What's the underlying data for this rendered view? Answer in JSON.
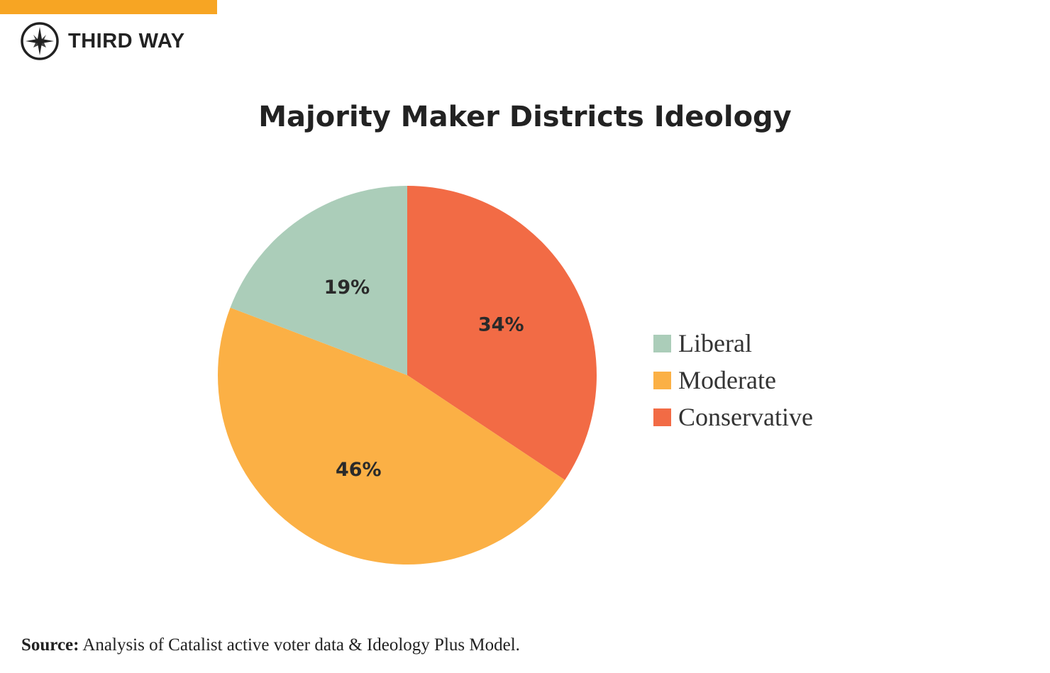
{
  "brand": {
    "name": "THIRD WAY",
    "accent_color": "#f7a523"
  },
  "chart_data": {
    "type": "pie",
    "title": "Majority Maker Districts Ideology",
    "slices": [
      {
        "label": "Conservative",
        "value": 34,
        "display": "34%",
        "color": "#f26b45"
      },
      {
        "label": "Moderate",
        "value": 46,
        "display": "46%",
        "color": "#fbb045"
      },
      {
        "label": "Liberal",
        "value": 19,
        "display": "19%",
        "color": "#abcdb9"
      }
    ],
    "start_angle": "12 o'clock",
    "direction": "clockwise",
    "legend": {
      "position": "right",
      "entries": [
        {
          "label": "Liberal",
          "color": "#abcdb9"
        },
        {
          "label": "Moderate",
          "color": "#fbb045"
        },
        {
          "label": "Conservative",
          "color": "#f26b45"
        }
      ]
    }
  },
  "source": {
    "label": "Source:",
    "text": " Analysis of Catalist active voter data & Ideology Plus Model."
  }
}
